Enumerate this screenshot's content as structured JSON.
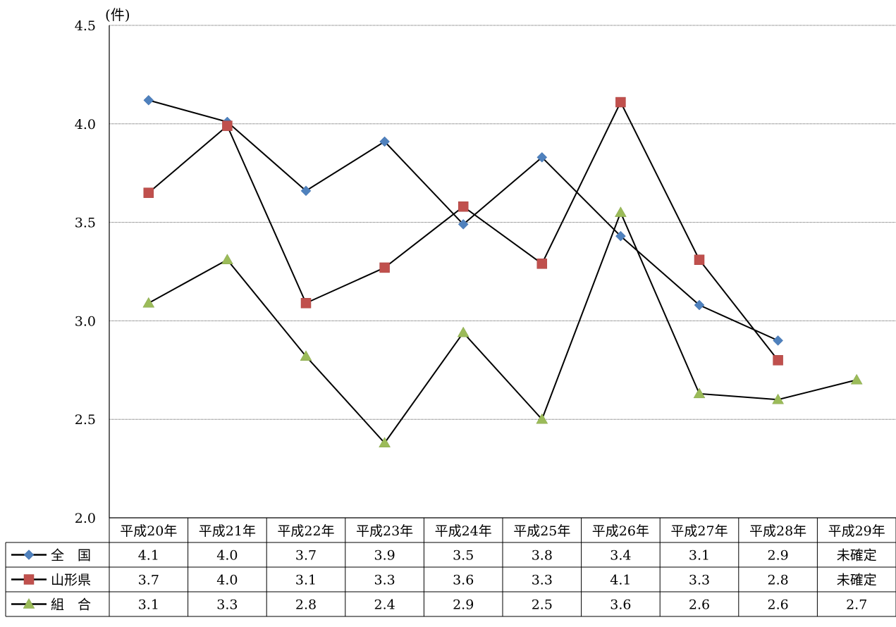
{
  "chart_data": {
    "type": "line",
    "unit_label": "(件)",
    "categories": [
      "平成20年",
      "平成21年",
      "平成22年",
      "平成23年",
      "平成24年",
      "平成25年",
      "平成26年",
      "平成27年",
      "平成28年",
      "平成29年"
    ],
    "ylim": [
      2.0,
      4.5
    ],
    "yticks": [
      "2.0",
      "2.5",
      "3.0",
      "3.5",
      "4.0",
      "4.5"
    ],
    "grid": true,
    "series": [
      {
        "name": "全　国",
        "marker": "diamond",
        "color": "#4f81bd",
        "values": [
          4.12,
          4.01,
          3.66,
          3.91,
          3.49,
          3.83,
          3.43,
          3.08,
          2.9,
          null
        ],
        "table_values": [
          "4.1",
          "4.0",
          "3.7",
          "3.9",
          "3.5",
          "3.8",
          "3.4",
          "3.1",
          "2.9",
          "未確定"
        ]
      },
      {
        "name": "山形県",
        "marker": "square",
        "color": "#c0504d",
        "values": [
          3.65,
          3.99,
          3.09,
          3.27,
          3.58,
          3.29,
          4.11,
          3.31,
          2.8,
          null
        ],
        "table_values": [
          "3.7",
          "4.0",
          "3.1",
          "3.3",
          "3.6",
          "3.3",
          "4.1",
          "3.3",
          "2.8",
          "未確定"
        ]
      },
      {
        "name": "組　合",
        "marker": "triangle",
        "color": "#9bbb59",
        "values": [
          3.09,
          3.31,
          2.82,
          2.38,
          2.94,
          2.5,
          3.55,
          2.63,
          2.6,
          2.7
        ],
        "table_values": [
          "3.1",
          "3.3",
          "2.8",
          "2.4",
          "2.9",
          "2.5",
          "3.6",
          "2.6",
          "2.6",
          "2.7"
        ]
      }
    ]
  }
}
